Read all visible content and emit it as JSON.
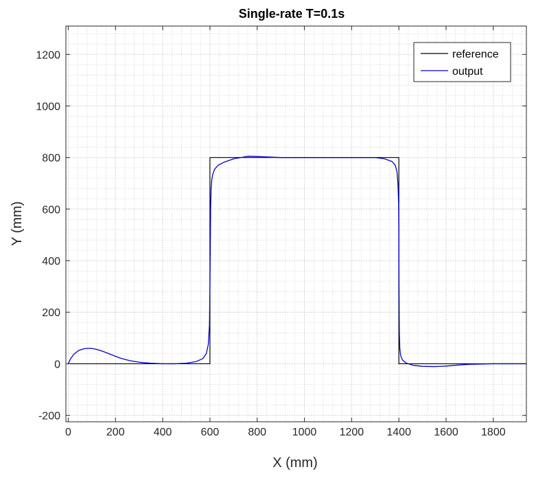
{
  "chart_data": {
    "type": "line",
    "title": "Single-rate T=0.1s",
    "xlabel": "X (mm)",
    "ylabel": "Y (mm)",
    "xlim": [
      -10,
      1940
    ],
    "ylim": [
      -225,
      1310
    ],
    "xticks": [
      0,
      200,
      400,
      600,
      800,
      1000,
      1200,
      1400,
      1600,
      1800
    ],
    "yticks": [
      -200,
      0,
      200,
      400,
      600,
      800,
      1000,
      1200
    ],
    "grid": true,
    "minor_grid": true,
    "legend_position": "top-right",
    "series": [
      {
        "name": "reference",
        "color": "#000000",
        "x": [
          0,
          600,
          600,
          1400,
          1400,
          1940
        ],
        "y": [
          0,
          0,
          800,
          800,
          0,
          0
        ]
      },
      {
        "name": "output",
        "color": "#0000cd",
        "x": [
          0,
          10,
          25,
          45,
          70,
          95,
          120,
          150,
          180,
          220,
          260,
          300,
          350,
          400,
          450,
          500,
          540,
          570,
          585,
          593,
          598,
          600,
          602,
          603,
          605,
          608,
          612,
          620,
          635,
          660,
          700,
          760,
          800,
          900,
          1000,
          1100,
          1200,
          1300,
          1340,
          1370,
          1385,
          1392,
          1396,
          1399,
          1400,
          1400,
          1401,
          1402,
          1404,
          1408,
          1415,
          1430,
          1460,
          1500,
          1550,
          1600,
          1650,
          1700,
          1750,
          1800,
          1850,
          1900,
          1940
        ],
        "y": [
          0,
          20,
          38,
          52,
          59,
          60,
          56,
          47,
          36,
          22,
          12,
          6,
          2,
          0,
          0,
          2,
          8,
          20,
          40,
          75,
          150,
          300,
          500,
          600,
          680,
          715,
          735,
          755,
          770,
          782,
          795,
          805,
          804,
          800,
          800,
          800,
          800,
          800,
          795,
          785,
          770,
          745,
          700,
          620,
          500,
          400,
          250,
          120,
          60,
          30,
          15,
          3,
          -6,
          -10,
          -11,
          -9,
          -5,
          -2,
          -1,
          0,
          0,
          0,
          0
        ]
      }
    ]
  }
}
